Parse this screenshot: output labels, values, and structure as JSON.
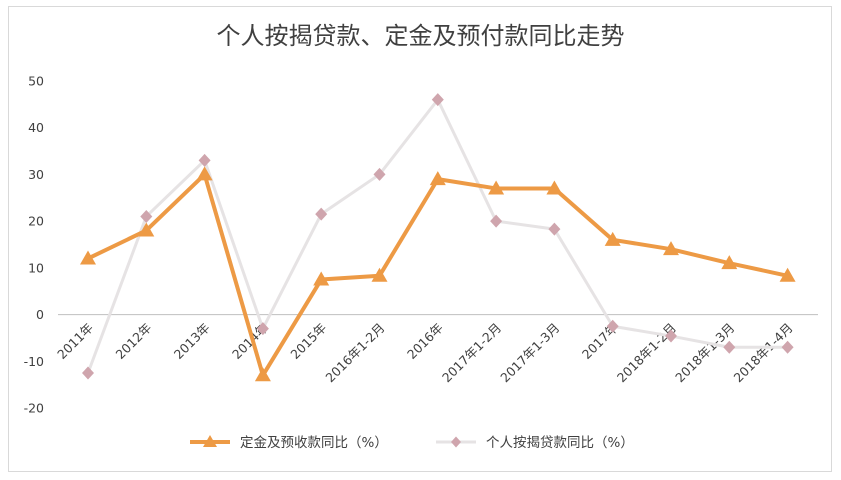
{
  "chart_data": {
    "type": "line",
    "title": "个人按揭贷款、定金及预付款同比走势",
    "xlabel": "",
    "ylabel": "",
    "categories": [
      "2011年",
      "2012年",
      "2013年",
      "2014年",
      "2015年",
      "2016年1-2月",
      "2016年",
      "2017年1-2月",
      "2017年1-3月",
      "2017年",
      "2018年1-2月",
      "2018年1-3月",
      "2018年1-4月"
    ],
    "ylim": [
      -20,
      50
    ],
    "yticks": [
      -20,
      -10,
      0,
      10,
      20,
      30,
      40,
      50
    ],
    "grid": false,
    "legend_position": "bottom",
    "series": [
      {
        "name": "定金及预收款同比（%）",
        "color": "#ED9A45",
        "marker": "triangle",
        "values": [
          12,
          18,
          30,
          -13,
          7.5,
          8.3,
          29,
          27,
          27,
          16,
          14,
          11,
          8.3
        ]
      },
      {
        "name": "个人按揭贷款同比（%）",
        "color": "#E6E3E4",
        "marker_color": "#CFA5AD",
        "marker": "diamond",
        "values": [
          -12.5,
          21,
          33,
          -3,
          21.5,
          30,
          46,
          20,
          18.3,
          -2.5,
          -4.6,
          -7,
          -7
        ]
      }
    ]
  }
}
